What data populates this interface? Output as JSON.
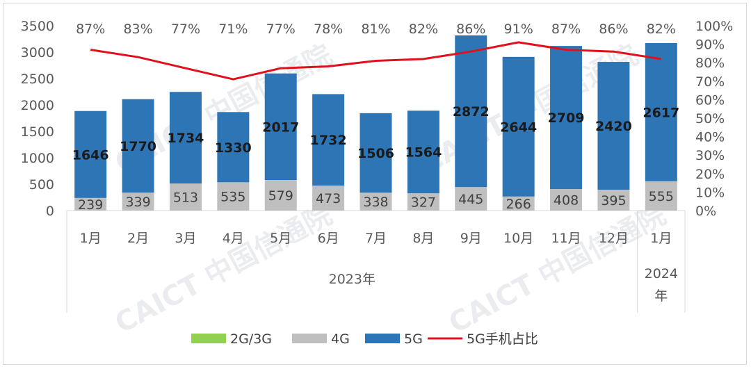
{
  "chart_data": {
    "type": "bar",
    "stacked": true,
    "categories": [
      "1月",
      "2月",
      "3月",
      "4月",
      "5月",
      "6月",
      "7月",
      "8月",
      "9月",
      "10月",
      "11月",
      "12月",
      "1月"
    ],
    "year_groups": [
      {
        "label": "2023年",
        "start": 0,
        "end": 11
      },
      {
        "label": "2024年",
        "start": 12,
        "end": 12
      }
    ],
    "series": [
      {
        "name": "2G/3G",
        "type": "bar",
        "color": "#92d050",
        "values": [
          0,
          0,
          0,
          0,
          0,
          0,
          0,
          0,
          0,
          0,
          0,
          0,
          0
        ]
      },
      {
        "name": "4G",
        "type": "bar",
        "color": "#bfbfbf",
        "values": [
          239,
          339,
          513,
          535,
          579,
          473,
          338,
          327,
          445,
          266,
          408,
          395,
          555
        ]
      },
      {
        "name": "5G",
        "type": "bar",
        "color": "#2e75b6",
        "values": [
          1646,
          1770,
          1734,
          1330,
          2017,
          1732,
          1506,
          1564,
          2872,
          2644,
          2709,
          2420,
          2617
        ]
      },
      {
        "name": "5G手机占比",
        "type": "line",
        "axis": "right",
        "color": "#e0111c",
        "values": [
          87,
          83,
          77,
          71,
          77,
          78,
          81,
          82,
          86,
          91,
          87,
          86,
          82
        ]
      }
    ],
    "y_left": {
      "min": 0,
      "max": 3500,
      "ticks": [
        "0",
        "500",
        "1000",
        "1500",
        "2000",
        "2500",
        "3000",
        "3500"
      ]
    },
    "y_right": {
      "min": 0,
      "max": 100,
      "ticks": [
        "0%",
        "10%",
        "20%",
        "30%",
        "40%",
        "50%",
        "60%",
        "70%",
        "80%",
        "90%",
        "100%"
      ]
    },
    "gridlines": false,
    "legend_position": "bottom"
  },
  "watermark": "CAICT 中国信通院"
}
